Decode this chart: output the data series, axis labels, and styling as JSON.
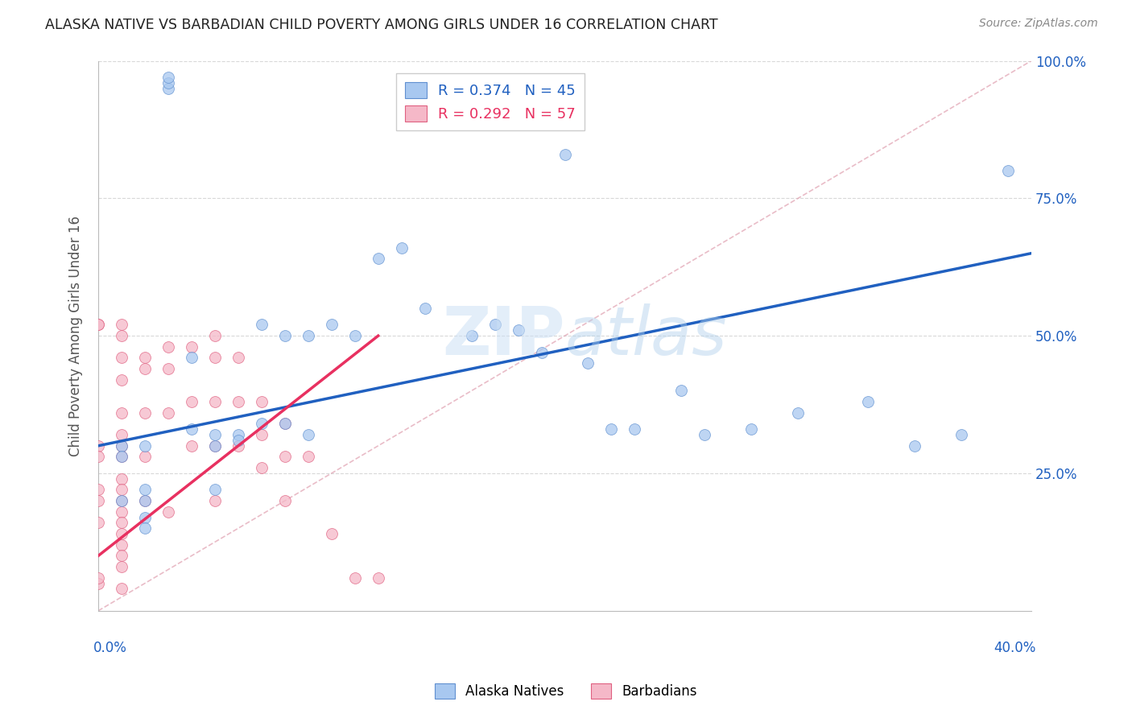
{
  "title": "ALASKA NATIVE VS BARBADIAN CHILD POVERTY AMONG GIRLS UNDER 16 CORRELATION CHART",
  "source": "Source: ZipAtlas.com",
  "ylabel": "Child Poverty Among Girls Under 16",
  "xlim": [
    0.0,
    0.4
  ],
  "ylim": [
    0.0,
    1.0
  ],
  "legend_r1": "R = 0.374",
  "legend_n1": "N = 45",
  "legend_r2": "R = 0.292",
  "legend_n2": "N = 57",
  "alaska_color": "#a8c8f0",
  "barbadian_color": "#f5b8c8",
  "regression_blue": "#2060c0",
  "regression_pink": "#e83060",
  "diag_color": "#e0a0b0",
  "alaska_x": [
    0.01,
    0.01,
    0.01,
    0.02,
    0.02,
    0.03,
    0.03,
    0.03,
    0.04,
    0.04,
    0.05,
    0.05,
    0.05,
    0.06,
    0.06,
    0.07,
    0.07,
    0.08,
    0.08,
    0.09,
    0.09,
    0.1,
    0.11,
    0.12,
    0.13,
    0.14,
    0.16,
    0.17,
    0.18,
    0.19,
    0.2,
    0.21,
    0.22,
    0.23,
    0.25,
    0.26,
    0.28,
    0.3,
    0.33,
    0.35,
    0.37,
    0.39,
    0.02,
    0.02,
    0.02
  ],
  "alaska_y": [
    0.3,
    0.28,
    0.2,
    0.3,
    0.2,
    0.95,
    0.96,
    0.97,
    0.46,
    0.33,
    0.32,
    0.3,
    0.22,
    0.32,
    0.31,
    0.52,
    0.34,
    0.5,
    0.34,
    0.5,
    0.32,
    0.52,
    0.5,
    0.64,
    0.66,
    0.55,
    0.5,
    0.52,
    0.51,
    0.47,
    0.83,
    0.45,
    0.33,
    0.33,
    0.4,
    0.32,
    0.33,
    0.36,
    0.38,
    0.3,
    0.32,
    0.8,
    0.22,
    0.17,
    0.15
  ],
  "barbadian_x": [
    0.0,
    0.0,
    0.0,
    0.0,
    0.0,
    0.0,
    0.0,
    0.0,
    0.01,
    0.01,
    0.01,
    0.01,
    0.01,
    0.01,
    0.01,
    0.01,
    0.01,
    0.01,
    0.01,
    0.01,
    0.01,
    0.01,
    0.01,
    0.01,
    0.01,
    0.02,
    0.02,
    0.02,
    0.02,
    0.02,
    0.03,
    0.03,
    0.03,
    0.03,
    0.04,
    0.04,
    0.04,
    0.05,
    0.05,
    0.05,
    0.05,
    0.05,
    0.06,
    0.06,
    0.06,
    0.07,
    0.07,
    0.07,
    0.08,
    0.08,
    0.08,
    0.09,
    0.1,
    0.11,
    0.12,
    0.0,
    0.01
  ],
  "barbadian_y": [
    0.52,
    0.52,
    0.3,
    0.28,
    0.22,
    0.2,
    0.16,
    0.05,
    0.52,
    0.5,
    0.46,
    0.42,
    0.36,
    0.32,
    0.3,
    0.28,
    0.24,
    0.22,
    0.2,
    0.18,
    0.16,
    0.14,
    0.12,
    0.1,
    0.08,
    0.46,
    0.44,
    0.36,
    0.28,
    0.2,
    0.48,
    0.44,
    0.36,
    0.18,
    0.48,
    0.38,
    0.3,
    0.5,
    0.46,
    0.38,
    0.3,
    0.2,
    0.46,
    0.38,
    0.3,
    0.38,
    0.32,
    0.26,
    0.34,
    0.28,
    0.2,
    0.28,
    0.14,
    0.06,
    0.06,
    0.06,
    0.04
  ],
  "blue_line_x0": 0.0,
  "blue_line_y0": 0.3,
  "blue_line_x1": 0.4,
  "blue_line_y1": 0.65,
  "pink_line_x0": 0.0,
  "pink_line_y0": 0.1,
  "pink_line_x1": 0.12,
  "pink_line_y1": 0.5,
  "diag_line_x0": 0.0,
  "diag_line_y0": 0.0,
  "diag_line_x1": 0.4,
  "diag_line_y1": 1.0
}
